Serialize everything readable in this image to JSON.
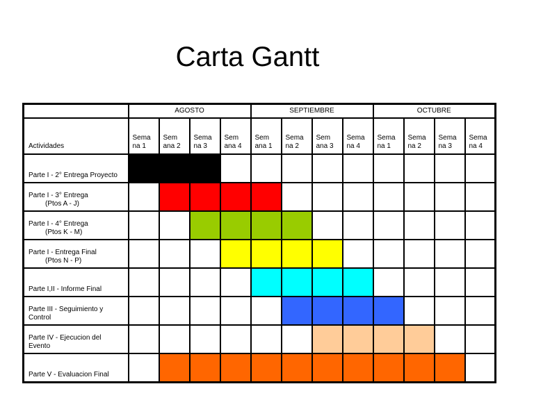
{
  "title": "Carta Gantt",
  "header": {
    "activities_label": "Actividades",
    "months": [
      {
        "label": "AGOSTO",
        "span": 4
      },
      {
        "label": "SEPTIEMBRE",
        "span": 4
      },
      {
        "label": "OCTUBRE",
        "span": 4
      }
    ],
    "weeks": [
      [
        "Sema",
        "na 1"
      ],
      [
        "Sem",
        "ana 2"
      ],
      [
        "Sema",
        "na 3"
      ],
      [
        "Sem",
        "ana 4"
      ],
      [
        "Sem",
        "ana 1"
      ],
      [
        "Sema",
        "na 2"
      ],
      [
        "Sem",
        "ana 3"
      ],
      [
        "Sema",
        "na 4"
      ],
      [
        "Sema",
        "na 1"
      ],
      [
        "Sema",
        "na 2"
      ],
      [
        "Sema",
        "na 3"
      ],
      [
        "Sema",
        "na 4"
      ]
    ]
  },
  "rows": [
    {
      "label": [
        "Parte I - 2° Entrega Proyecto"
      ],
      "indent_second": false,
      "color": "#000000",
      "start": 1,
      "end": 3
    },
    {
      "label": [
        "Parte I - 3° Entrega",
        "(Ptos A - J)"
      ],
      "indent_second": true,
      "color": "#ff0000",
      "start": 2,
      "end": 5
    },
    {
      "label": [
        "Parte I - 4° Entrega",
        "(Ptos K - M)"
      ],
      "indent_second": true,
      "color": "#99cc00",
      "start": 3,
      "end": 6
    },
    {
      "label": [
        "Parte I - Entrega Final",
        "(Ptos N - P)"
      ],
      "indent_second": true,
      "color": "#ffff00",
      "start": 4,
      "end": 7
    },
    {
      "label": [
        "Parte I,II -  Informe Final"
      ],
      "indent_second": false,
      "color": "#00ffff",
      "start": 5,
      "end": 8
    },
    {
      "label": [
        "Parte III - Seguimiento y",
        "Control"
      ],
      "indent_second": false,
      "color": "#3366ff",
      "start": 6,
      "end": 9
    },
    {
      "label": [
        "Parte IV - Ejecucion del",
        "Evento"
      ],
      "indent_second": false,
      "color": "#ffcc99",
      "start": 7,
      "end": 10
    },
    {
      "label": [
        "Parte V - Evaluacion Final"
      ],
      "indent_second": false,
      "color": "#ff6600",
      "start": 2,
      "end": 11
    }
  ]
}
